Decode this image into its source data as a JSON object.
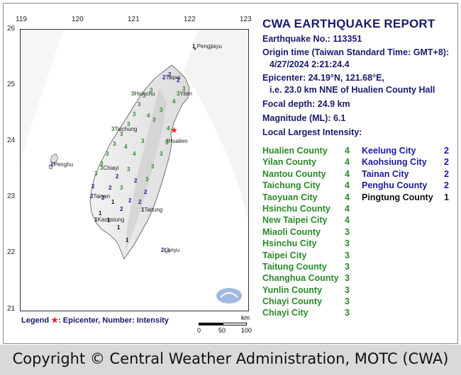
{
  "map": {
    "lon_ticks": [
      "119",
      "120",
      "121",
      "122",
      "123"
    ],
    "lat_ticks": [
      "26",
      "25",
      "24",
      "23",
      "22",
      "21"
    ],
    "place_labels": {
      "pengjiayu": "Pengjiayu",
      "taipei": "Taipei",
      "yilan": "Yilan",
      "hsinchu": "Hsinchu",
      "taichung": "Taichung",
      "hualien": "Hualien",
      "penghu": "Penghu",
      "chiayi": "Chiayi",
      "tainan": "Tainan",
      "kaohsiung": "Kaohsiung",
      "taitung": "Taitung",
      "lanyu": "Lanyu"
    },
    "place_intensities": {
      "pengjiayu": "1",
      "taipei": "2",
      "yilan": "3",
      "hsinchu": "3",
      "taichung": "3",
      "hualien": "4",
      "penghu": "2",
      "chiayi": "3",
      "tainan": "2",
      "kaohsiung": "1",
      "taitung": "1",
      "lanyu": "2"
    },
    "colors": {
      "intensity_4": "#2a8a2a",
      "intensity_3": "#2a8a2a",
      "intensity_2": "#1a1a9e",
      "intensity_1": "#111111",
      "land": "#e8e8e8",
      "epicenter": "#e02020"
    }
  },
  "report": {
    "title": "CWA EARTHQUAKE REPORT",
    "number": "Earthquake No.: 113351",
    "origin_label": "Origin time (Taiwan Standard Time: GMT+8):",
    "origin_value": "4/27/2024  2:21:24.4",
    "epicenter": "Epicenter: 24.19°N, 121.68°E,",
    "epicenter_rel": "i.e. 23.0 km NNE of Hualien County Hall",
    "depth": "Focal depth: 24.9 km",
    "magnitude": "Magnitude (ML): 6.1",
    "intensity_heading": "Local Largest Intensity:",
    "left_column": [
      {
        "name": "Hualien County",
        "value": "4"
      },
      {
        "name": "Yilan County",
        "value": "4"
      },
      {
        "name": "Nantou County",
        "value": "4"
      },
      {
        "name": "Taichung City",
        "value": "4"
      },
      {
        "name": "Taoyuan City",
        "value": "4"
      },
      {
        "name": "Hsinchu County",
        "value": "4"
      },
      {
        "name": "New Taipei City",
        "value": "4"
      },
      {
        "name": "Miaoli County",
        "value": "3"
      },
      {
        "name": "Hsinchu City",
        "value": "3"
      },
      {
        "name": "Taipei City",
        "value": "3"
      },
      {
        "name": "Taitung County",
        "value": "3"
      },
      {
        "name": "Changhua County",
        "value": "3"
      },
      {
        "name": "Yunlin County",
        "value": "3"
      },
      {
        "name": "Chiayi County",
        "value": "3"
      },
      {
        "name": "Chiayi City",
        "value": "3"
      }
    ],
    "right_column": [
      {
        "name": "Keelung City",
        "value": "2"
      },
      {
        "name": "Kaohsiung City",
        "value": "2"
      },
      {
        "name": "Tainan City",
        "value": "2"
      },
      {
        "name": "Penghu County",
        "value": "2"
      },
      {
        "name": "Pingtung County",
        "value": "1"
      }
    ]
  },
  "legend": {
    "label": "Legend",
    "star": "★",
    "text": ": Epicenter, Number: Intensity"
  },
  "scale": {
    "unit": "km",
    "ticks": [
      "0",
      "50",
      "100"
    ]
  },
  "footer": {
    "copyright": "Copyright © Central Weather Administration, MOTC (CWA)"
  }
}
